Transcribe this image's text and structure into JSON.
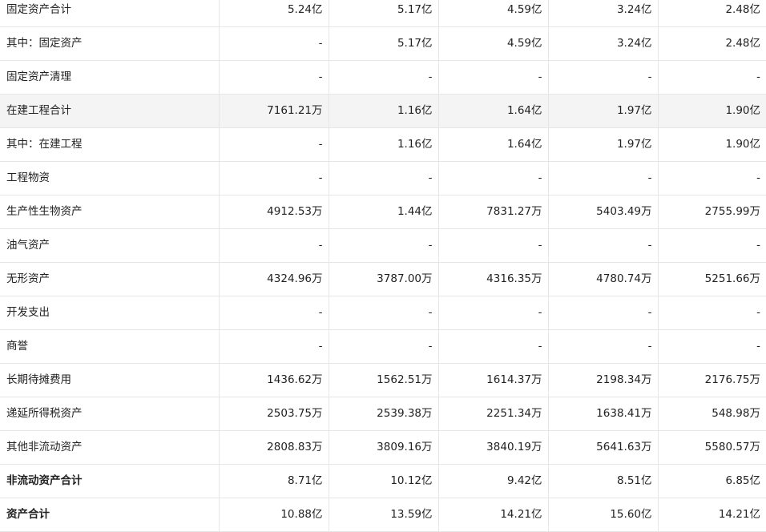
{
  "rows": [
    {
      "label": "固定资产合计",
      "values": [
        "5.24亿",
        "5.17亿",
        "4.59亿",
        "3.24亿",
        "2.48亿"
      ],
      "bold": false,
      "highlight": false
    },
    {
      "label": "其中：固定资产",
      "values": [
        "-",
        "5.17亿",
        "4.59亿",
        "3.24亿",
        "2.48亿"
      ],
      "bold": false,
      "highlight": false
    },
    {
      "label": "固定资产清理",
      "values": [
        "-",
        "-",
        "-",
        "-",
        "-"
      ],
      "bold": false,
      "highlight": false
    },
    {
      "label": "在建工程合计",
      "values": [
        "7161.21万",
        "1.16亿",
        "1.64亿",
        "1.97亿",
        "1.90亿"
      ],
      "bold": false,
      "highlight": true
    },
    {
      "label": "其中：在建工程",
      "values": [
        "-",
        "1.16亿",
        "1.64亿",
        "1.97亿",
        "1.90亿"
      ],
      "bold": false,
      "highlight": false
    },
    {
      "label": "工程物资",
      "values": [
        "-",
        "-",
        "-",
        "-",
        "-"
      ],
      "bold": false,
      "highlight": false
    },
    {
      "label": "生产性生物资产",
      "values": [
        "4912.53万",
        "1.44亿",
        "7831.27万",
        "5403.49万",
        "2755.99万"
      ],
      "bold": false,
      "highlight": false
    },
    {
      "label": "油气资产",
      "values": [
        "-",
        "-",
        "-",
        "-",
        "-"
      ],
      "bold": false,
      "highlight": false
    },
    {
      "label": "无形资产",
      "values": [
        "4324.96万",
        "3787.00万",
        "4316.35万",
        "4780.74万",
        "5251.66万"
      ],
      "bold": false,
      "highlight": false
    },
    {
      "label": "开发支出",
      "values": [
        "-",
        "-",
        "-",
        "-",
        "-"
      ],
      "bold": false,
      "highlight": false
    },
    {
      "label": "商誉",
      "values": [
        "-",
        "-",
        "-",
        "-",
        "-"
      ],
      "bold": false,
      "highlight": false
    },
    {
      "label": "长期待摊费用",
      "values": [
        "1436.62万",
        "1562.51万",
        "1614.37万",
        "2198.34万",
        "2176.75万"
      ],
      "bold": false,
      "highlight": false
    },
    {
      "label": "递延所得税资产",
      "values": [
        "2503.75万",
        "2539.38万",
        "2251.34万",
        "1638.41万",
        "548.98万"
      ],
      "bold": false,
      "highlight": false
    },
    {
      "label": "其他非流动资产",
      "values": [
        "2808.83万",
        "3809.16万",
        "3840.19万",
        "5641.63万",
        "5580.57万"
      ],
      "bold": false,
      "highlight": false
    },
    {
      "label": "非流动资产合计",
      "values": [
        "8.71亿",
        "10.12亿",
        "9.42亿",
        "8.51亿",
        "6.85亿"
      ],
      "bold": true,
      "highlight": false
    },
    {
      "label": "资产合计",
      "values": [
        "10.88亿",
        "13.59亿",
        "14.21亿",
        "15.60亿",
        "14.21亿"
      ],
      "bold": true,
      "highlight": false
    }
  ]
}
